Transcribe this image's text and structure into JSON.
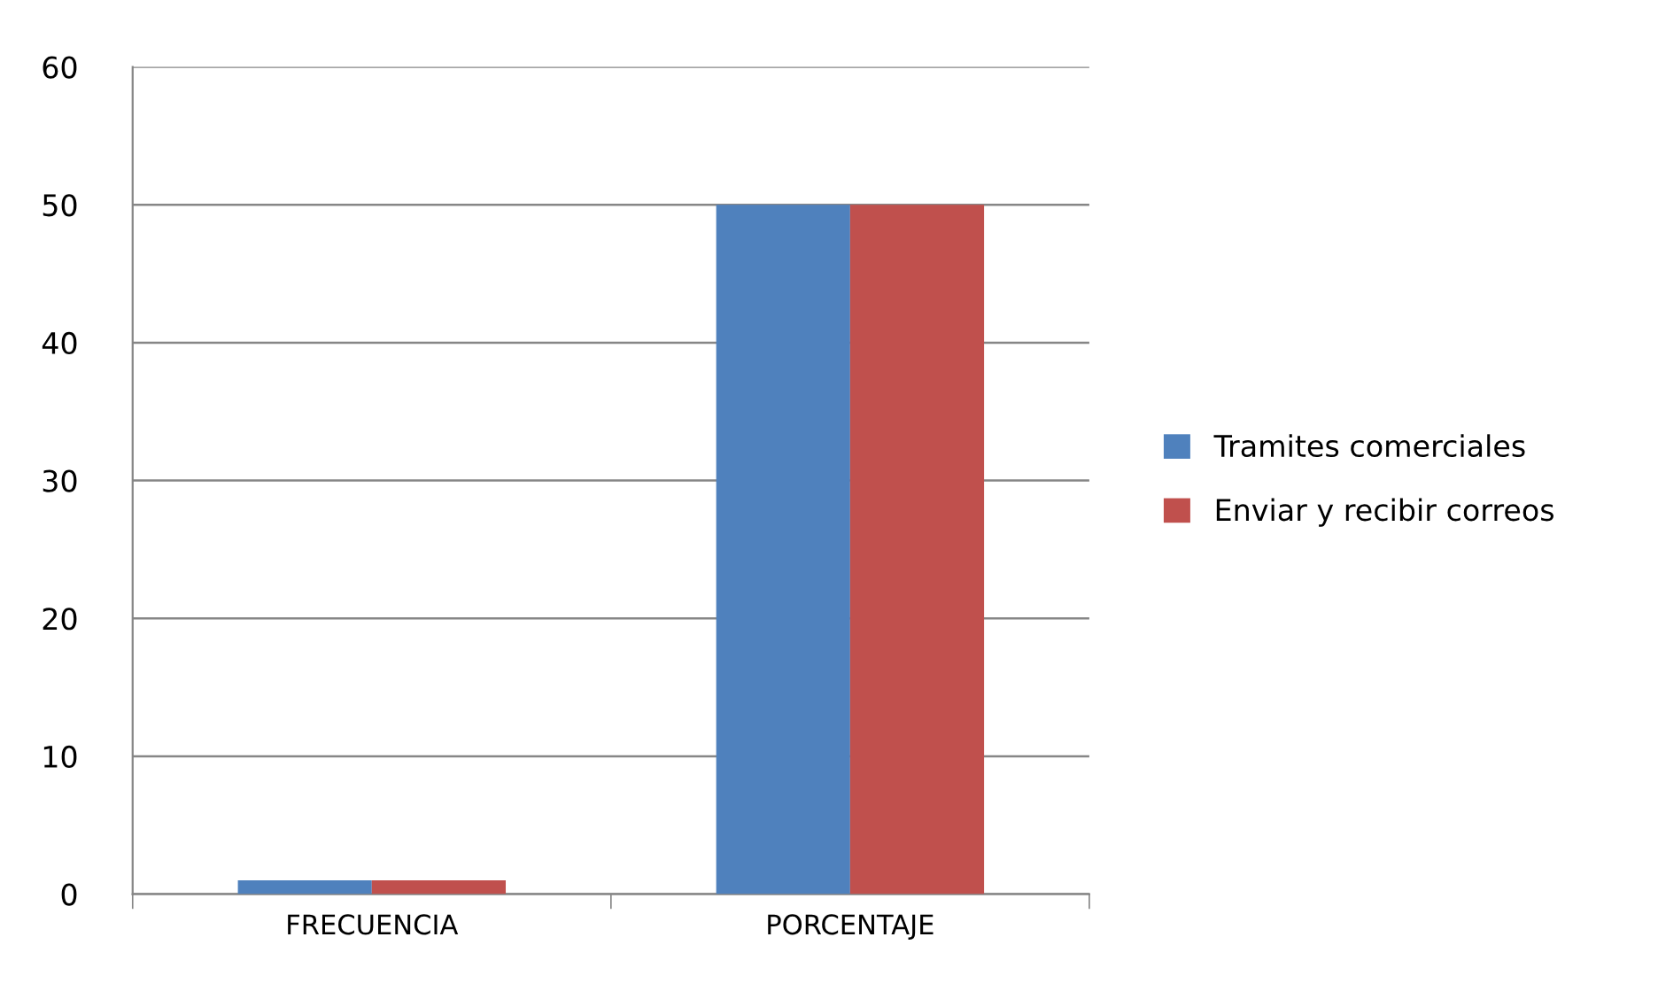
{
  "chart_data": {
    "type": "bar",
    "categories": [
      "FRECUENCIA",
      "PORCENTAJE"
    ],
    "series": [
      {
        "name": "Tramites comerciales",
        "color": "#4f81bd",
        "values": [
          1,
          50
        ]
      },
      {
        "name": "Enviar y recibir correos",
        "color": "#c0504d",
        "values": [
          1,
          50
        ]
      }
    ],
    "ylim": [
      0,
      60
    ],
    "yticks": [
      0,
      10,
      20,
      30,
      40,
      50,
      60
    ],
    "grid": "y",
    "legend": "right"
  }
}
